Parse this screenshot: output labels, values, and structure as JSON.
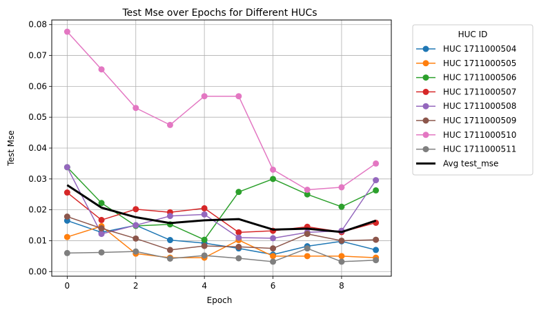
{
  "chart_data": {
    "type": "line",
    "title": "Test Mse over Epochs for Different HUCs",
    "xlabel": "Epoch",
    "ylabel": "Test Mse",
    "xlim": [
      -0.45,
      9.45
    ],
    "ylim": [
      -0.0015,
      0.0815
    ],
    "x": [
      0,
      1,
      2,
      3,
      4,
      5,
      6,
      7,
      8,
      9
    ],
    "xticks": [
      0,
      2,
      4,
      6,
      8
    ],
    "yticks": [
      0.0,
      0.01,
      0.02,
      0.03,
      0.04,
      0.05,
      0.06,
      0.07,
      0.08
    ],
    "ytick_labels": [
      "0.00",
      "0.01",
      "0.02",
      "0.03",
      "0.04",
      "0.05",
      "0.06",
      "0.07",
      "0.08"
    ],
    "grid": true,
    "legend_title": "HUC ID",
    "legend_placement": "outside-right-top",
    "series": [
      {
        "name": "HUC 1711000504",
        "color": "#1f77b4",
        "values": [
          0.0165,
          0.0127,
          0.015,
          0.0102,
          0.0092,
          0.0075,
          0.0055,
          0.0082,
          0.0098,
          0.007
        ]
      },
      {
        "name": "HUC 1711000505",
        "color": "#ff7f0e",
        "values": [
          0.0112,
          0.0147,
          0.0058,
          0.0045,
          0.0045,
          0.0102,
          0.005,
          0.005,
          0.005,
          0.0045
        ]
      },
      {
        "name": "HUC 1711000506",
        "color": "#2ca02c",
        "values": [
          0.0338,
          0.0222,
          0.0148,
          0.0153,
          0.0103,
          0.0258,
          0.03,
          0.025,
          0.021,
          0.0263
        ]
      },
      {
        "name": "HUC 1711000507",
        "color": "#d62728",
        "values": [
          0.0256,
          0.0167,
          0.0202,
          0.0192,
          0.0205,
          0.0127,
          0.0132,
          0.0145,
          0.0128,
          0.0158
        ]
      },
      {
        "name": "HUC 1711000508",
        "color": "#9467bd",
        "values": [
          0.0338,
          0.0122,
          0.015,
          0.018,
          0.0185,
          0.011,
          0.0108,
          0.0127,
          0.0132,
          0.0296
        ]
      },
      {
        "name": "HUC 1711000509",
        "color": "#8c564b",
        "values": [
          0.0178,
          0.014,
          0.0107,
          0.007,
          0.0083,
          0.008,
          0.0075,
          0.0122,
          0.01,
          0.0103
        ]
      },
      {
        "name": "HUC 1711000510",
        "color": "#e377c2",
        "values": [
          0.0777,
          0.0655,
          0.053,
          0.0475,
          0.0568,
          0.0568,
          0.033,
          0.0265,
          0.0273,
          0.035
        ]
      },
      {
        "name": "HUC 1711000511",
        "color": "#7f7f7f",
        "values": [
          0.006,
          0.0062,
          0.0065,
          0.0042,
          0.0052,
          0.0043,
          0.0032,
          0.0075,
          0.0032,
          0.0037
        ]
      },
      {
        "name": "Avg test_mse",
        "color": "#000000",
        "values": [
          0.028,
          0.0207,
          0.0176,
          0.0157,
          0.0166,
          0.017,
          0.0136,
          0.0139,
          0.0128,
          0.0165
        ],
        "linewidth": "thick",
        "markers": false
      }
    ]
  }
}
